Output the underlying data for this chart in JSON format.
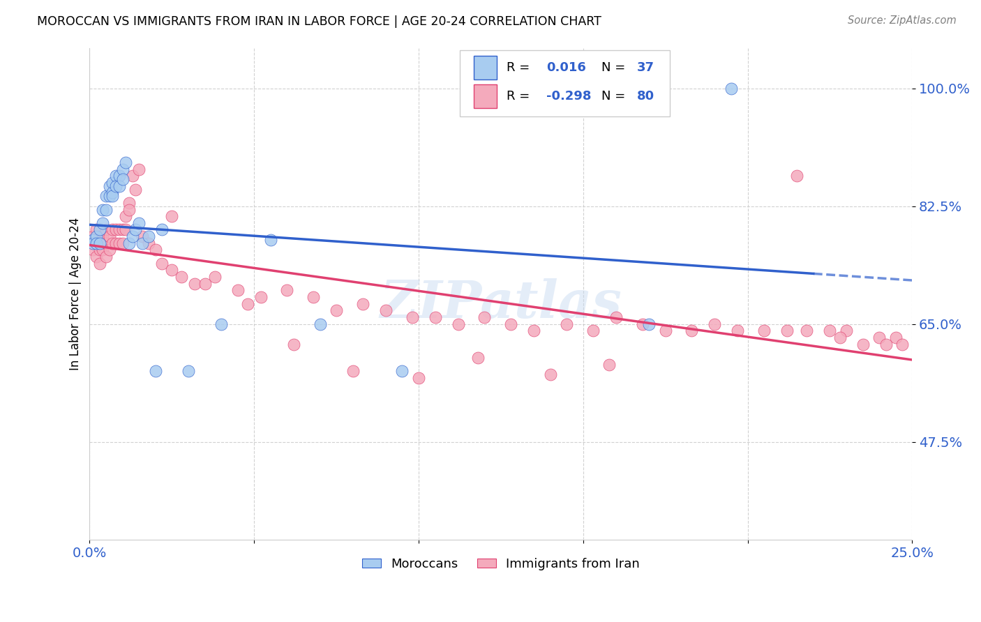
{
  "title": "MOROCCAN VS IMMIGRANTS FROM IRAN IN LABOR FORCE | AGE 20-24 CORRELATION CHART",
  "source": "Source: ZipAtlas.com",
  "ylabel": "In Labor Force | Age 20-24",
  "r_moroccan": "0.016",
  "n_moroccan": "37",
  "r_iran": "-0.298",
  "n_iran": "80",
  "color_moroccan": "#A8CCF0",
  "color_iran": "#F4AABC",
  "line_moroccan": "#3060CC",
  "line_iran": "#E04070",
  "xmin": 0.0,
  "xmax": 0.25,
  "ymin": 0.33,
  "ymax": 1.06,
  "yticks": [
    0.475,
    0.65,
    0.825,
    1.0
  ],
  "ytick_labels": [
    "47.5%",
    "65.0%",
    "82.5%",
    "100.0%"
  ],
  "xtick_labels": [
    "0.0%",
    "",
    "",
    "",
    "",
    "25.0%"
  ],
  "watermark": "ZIPatlas",
  "moroccan_x": [
    0.001,
    0.001,
    0.002,
    0.002,
    0.003,
    0.003,
    0.004,
    0.004,
    0.005,
    0.005,
    0.006,
    0.006,
    0.007,
    0.007,
    0.007,
    0.008,
    0.008,
    0.009,
    0.009,
    0.01,
    0.01,
    0.011,
    0.012,
    0.013,
    0.014,
    0.015,
    0.016,
    0.018,
    0.02,
    0.022,
    0.03,
    0.04,
    0.055,
    0.07,
    0.095,
    0.17,
    0.195
  ],
  "moroccan_y": [
    0.775,
    0.77,
    0.78,
    0.77,
    0.79,
    0.77,
    0.82,
    0.8,
    0.84,
    0.82,
    0.855,
    0.84,
    0.86,
    0.845,
    0.84,
    0.87,
    0.855,
    0.87,
    0.855,
    0.88,
    0.865,
    0.89,
    0.77,
    0.78,
    0.79,
    0.8,
    0.77,
    0.78,
    0.58,
    0.79,
    0.58,
    0.65,
    0.775,
    0.65,
    0.58,
    0.65,
    1.0
  ],
  "iran_x": [
    0.001,
    0.001,
    0.002,
    0.002,
    0.002,
    0.003,
    0.003,
    0.003,
    0.004,
    0.004,
    0.005,
    0.005,
    0.005,
    0.006,
    0.006,
    0.007,
    0.007,
    0.008,
    0.008,
    0.009,
    0.009,
    0.01,
    0.01,
    0.011,
    0.011,
    0.012,
    0.013,
    0.014,
    0.015,
    0.016,
    0.018,
    0.02,
    0.022,
    0.025,
    0.028,
    0.032,
    0.038,
    0.045,
    0.052,
    0.06,
    0.068,
    0.075,
    0.083,
    0.09,
    0.098,
    0.105,
    0.112,
    0.12,
    0.128,
    0.135,
    0.145,
    0.153,
    0.16,
    0.168,
    0.175,
    0.183,
    0.19,
    0.197,
    0.205,
    0.212,
    0.218,
    0.225,
    0.23,
    0.235,
    0.24,
    0.242,
    0.245,
    0.247,
    0.012,
    0.025,
    0.035,
    0.048,
    0.062,
    0.08,
    0.1,
    0.118,
    0.14,
    0.158,
    0.215,
    0.228
  ],
  "iran_y": [
    0.78,
    0.76,
    0.79,
    0.77,
    0.75,
    0.78,
    0.76,
    0.74,
    0.78,
    0.76,
    0.79,
    0.77,
    0.75,
    0.78,
    0.76,
    0.79,
    0.77,
    0.79,
    0.77,
    0.79,
    0.77,
    0.79,
    0.77,
    0.81,
    0.79,
    0.83,
    0.87,
    0.85,
    0.88,
    0.78,
    0.77,
    0.76,
    0.74,
    0.73,
    0.72,
    0.71,
    0.72,
    0.7,
    0.69,
    0.7,
    0.69,
    0.67,
    0.68,
    0.67,
    0.66,
    0.66,
    0.65,
    0.66,
    0.65,
    0.64,
    0.65,
    0.64,
    0.66,
    0.65,
    0.64,
    0.64,
    0.65,
    0.64,
    0.64,
    0.64,
    0.64,
    0.64,
    0.64,
    0.62,
    0.63,
    0.62,
    0.63,
    0.62,
    0.82,
    0.81,
    0.71,
    0.68,
    0.62,
    0.58,
    0.57,
    0.6,
    0.575,
    0.59,
    0.87,
    0.63
  ]
}
